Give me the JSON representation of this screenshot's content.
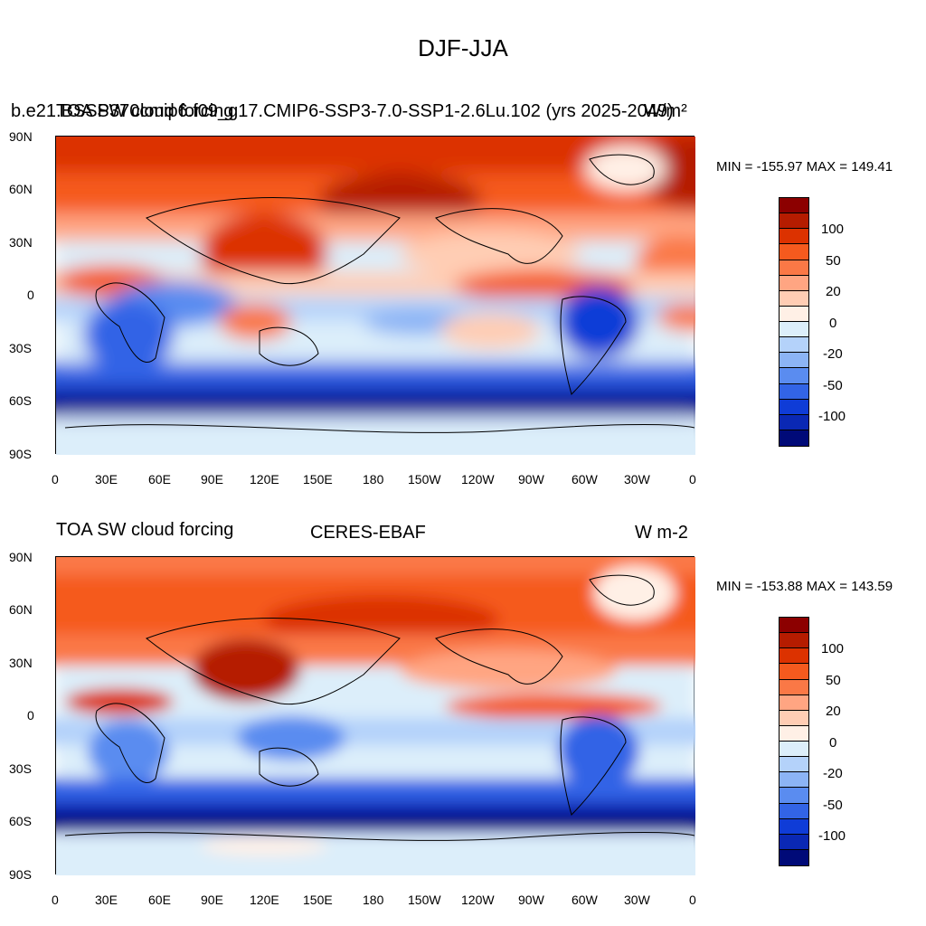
{
  "figure": {
    "title": "DJF-JJA"
  },
  "panels": [
    {
      "left_title": "TOA SW cloud forcing",
      "center_title": "b.e21.BSSP370cmip6.f09_g17.CMIP6-SSP3-7.0-SSP1-2.6Lu.102 (yrs 2025-2049)",
      "right_title": "W/m²",
      "stats": "MIN = -155.97 MAX = 149.41"
    },
    {
      "left_title": "TOA SW cloud forcing",
      "center_title": "CERES-EBAF",
      "right_title": "W m-2",
      "stats": "MIN = -153.88 MAX = 143.59"
    }
  ],
  "axes": {
    "lon_labels": [
      "0",
      "30E",
      "60E",
      "90E",
      "120E",
      "150E",
      "180",
      "150W",
      "120W",
      "90W",
      "60W",
      "30W",
      "0"
    ],
    "lat_labels": [
      "90N",
      "60N",
      "30N",
      "0",
      "30S",
      "60S",
      "90S"
    ]
  },
  "colorbar": {
    "labels": [
      "100",
      "50",
      "20",
      "0",
      "-20",
      "-50",
      "-100"
    ],
    "colors": [
      "#8c0000",
      "#b51c00",
      "#dc3200",
      "#f55a1e",
      "#fa7846",
      "#ffa582",
      "#ffcdb4",
      "#fff0e6",
      "#dceefa",
      "#b4d2fa",
      "#8cb4f5",
      "#5a8cf0",
      "#3264e6",
      "#0f3cd7",
      "#0a28b4",
      "#000a78"
    ]
  },
  "palette": {
    "ocean": "#ffffff",
    "coast": "#000000"
  }
}
